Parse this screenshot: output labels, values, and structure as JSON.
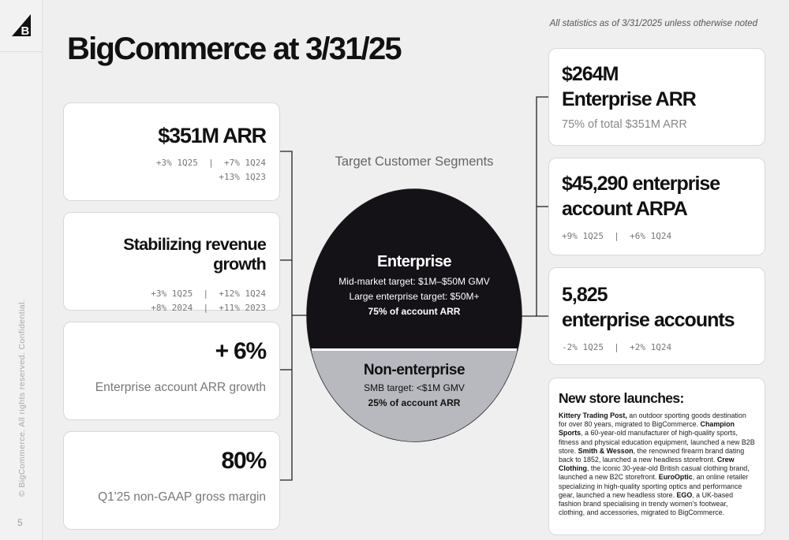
{
  "page": {
    "title": "BigCommerce at 3/31/25",
    "note": "All statistics as of 3/31/2025 unless otherwise noted",
    "copyright": "© BigCommerce.  All rights reserved.  Confidential.",
    "page_number": "5"
  },
  "left_cards": [
    {
      "headline": "$351M ARR",
      "details": [
        "+3% 1Q25  |  +7% 1Q24",
        "+13% 1Q23"
      ]
    },
    {
      "headline": "Stabilizing revenue growth",
      "details": [
        "+3% 1Q25  |  +12% 1Q24",
        "+8% 2024  |  +11% 2023"
      ]
    },
    {
      "headline": "+ 6%",
      "caption": "Enterprise account ARR growth"
    },
    {
      "headline": "80%",
      "caption": "Q1'25 non-GAAP gross margin"
    }
  ],
  "segments": {
    "title": "Target Customer Segments",
    "enterprise": {
      "heading": "Enterprise",
      "line1": "Mid-market target:  $1M–$50M GMV",
      "line2": "Large enterprise target: $50M+",
      "share": "75% of account ARR",
      "fill_color": "#141217"
    },
    "non_enterprise": {
      "heading": "Non-enterprise",
      "line1": "SMB target: <$1M GMV",
      "share": "25% of account ARR",
      "fill_color": "#b8b8bf"
    }
  },
  "right_cards": [
    {
      "title_line1": "$264M",
      "title_line2": "Enterprise ARR",
      "sub": "75% of total $351M ARR"
    },
    {
      "title_line1": "$45,290 enterprise",
      "title_line2": "account ARPA",
      "sub": "+9% 1Q25  |  +6% 1Q24"
    },
    {
      "title_line1": "5,825",
      "title_line2": "enterprise accounts",
      "sub": "-2% 1Q25  |  +2% 1Q24"
    }
  ],
  "news": {
    "title": "New store launches:",
    "items": [
      {
        "name": "Kittery Trading Post,",
        "text": " an outdoor sporting goods destination for over 80 years, migrated to BigCommerce. "
      },
      {
        "name": "Champion Sports",
        "text": ", a 60-year-old manufacturer of high-quality sports, fitness and physical education equipment, launched a new B2B store. "
      },
      {
        "name": "Smith & Wesson",
        "text": ", the renowned firearm brand dating back to 1852, launched a new headless storefront. "
      },
      {
        "name": "Crew Clothing",
        "text": ", the iconic 30-year-old British casual clothing brand, launched a new B2C storefront. "
      },
      {
        "name": "EuroOptic",
        "text": ", an online retailer specializing in high-quality sporting optics and performance gear, launched a new headless store. "
      },
      {
        "name": "EGO",
        "text": ", a UK-based fashion brand specialising in trendy women's footwear, clothing, and accessories, migrated to BigCommerce."
      }
    ]
  }
}
